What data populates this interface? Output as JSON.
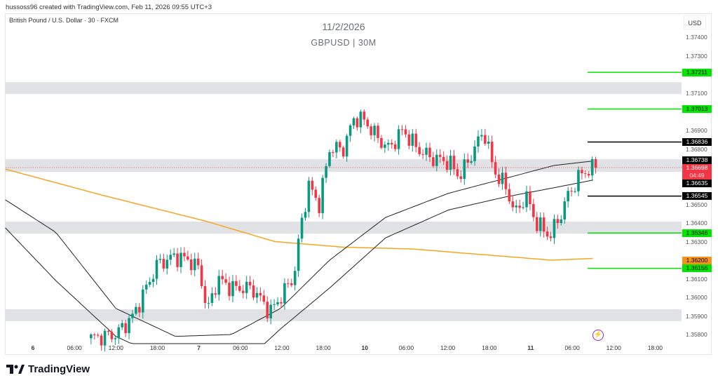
{
  "header": {
    "credit": "hussoss96 created with TradingView.com, Feb 11, 2026 09:55 UTC+3",
    "symbol": "British Pound / U.S. Dollar · 30 · FXCM",
    "date_title": "11/2/2026",
    "pair_title": "GBPUSD | 30M",
    "currency": "USD"
  },
  "footer": {
    "brand": "TradingView"
  },
  "colors": {
    "up": "#089981",
    "down": "#f23645",
    "ma": "#f5a623",
    "band": "#222222",
    "green_level": "#00e600",
    "black_level": "#000000",
    "zone": "#e0e2e6",
    "price_tag": "#f23645",
    "ma_tag": "#f7931a"
  },
  "chart_data": {
    "type": "candlestick",
    "x_unit": "trading hours since Feb 6 00:00",
    "ylim": [
      1.3575,
      1.3745
    ],
    "price_ticks": [
      "1.37400",
      "1.37300",
      "1.37100",
      "1.36900",
      "1.36800",
      "1.36500",
      "1.36400",
      "1.36300",
      "1.36100",
      "1.36000",
      "1.35900",
      "1.35800"
    ],
    "time_ticks": [
      {
        "h": 0,
        "label": "6",
        "day": true
      },
      {
        "h": 6,
        "label": "06:00"
      },
      {
        "h": 12,
        "label": "12:00"
      },
      {
        "h": 18,
        "label": "18:00"
      },
      {
        "h": 24,
        "label": "7",
        "day": true
      },
      {
        "h": 30,
        "label": "06:00"
      },
      {
        "h": 36,
        "label": "12:00"
      },
      {
        "h": 42,
        "label": "18:00"
      },
      {
        "h": 48,
        "label": "10",
        "day": true
      },
      {
        "h": 54,
        "label": "06:00"
      },
      {
        "h": 60,
        "label": "12:00"
      },
      {
        "h": 66,
        "label": "18:00"
      },
      {
        "h": 72,
        "label": "11",
        "day": true
      },
      {
        "h": 78,
        "label": "06:00"
      },
      {
        "h": 84,
        "label": "12:00"
      },
      {
        "h": 90,
        "label": "18:00"
      }
    ],
    "price_path": [
      [
        8.4,
        1.3578
      ],
      [
        12,
        1.358
      ],
      [
        14.5,
        1.359
      ],
      [
        17,
        1.361
      ],
      [
        18,
        1.3618
      ],
      [
        20.6,
        1.3622
      ],
      [
        22.6,
        1.362
      ],
      [
        24.1,
        1.3615
      ],
      [
        25.2,
        1.3592
      ],
      [
        26.7,
        1.361
      ],
      [
        28.7,
        1.3605
      ],
      [
        31.7,
        1.3605
      ],
      [
        34.3,
        1.3592
      ],
      [
        35.8,
        1.36
      ],
      [
        37.8,
        1.3612
      ],
      [
        38.8,
        1.364
      ],
      [
        39.9,
        1.366
      ],
      [
        41.4,
        1.365
      ],
      [
        42.9,
        1.368
      ],
      [
        44.9,
        1.368
      ],
      [
        46.5,
        1.3697
      ],
      [
        48,
        1.3695
      ],
      [
        50,
        1.3685
      ],
      [
        51.5,
        1.368
      ],
      [
        53.5,
        1.369
      ],
      [
        55.6,
        1.368
      ],
      [
        57.6,
        1.3675
      ],
      [
        60.1,
        1.3673
      ],
      [
        61.7,
        1.3665
      ],
      [
        63.2,
        1.3675
      ],
      [
        65.2,
        1.369
      ],
      [
        66.7,
        1.3668
      ],
      [
        68.3,
        1.366
      ],
      [
        69.8,
        1.3645
      ],
      [
        71.3,
        1.3655
      ],
      [
        72.8,
        1.364
      ],
      [
        74.8,
        1.3633
      ],
      [
        76.4,
        1.3645
      ],
      [
        77.4,
        1.3655
      ],
      [
        79.4,
        1.3667
      ],
      [
        81.4,
        1.36698
      ]
    ],
    "ma_line": [
      [
        -4,
        1.3669
      ],
      [
        10,
        1.3655
      ],
      [
        25,
        1.3641
      ],
      [
        35,
        1.363
      ],
      [
        45,
        1.3627
      ],
      [
        55,
        1.3626
      ],
      [
        65,
        1.3623
      ],
      [
        75,
        1.362
      ],
      [
        81.4,
        1.3621
      ]
    ],
    "upper_band": [
      [
        -4,
        1.36525
      ],
      [
        3.3,
        1.3635
      ],
      [
        12,
        1.3594
      ],
      [
        20.6,
        1.3579
      ],
      [
        28.7,
        1.358
      ],
      [
        35.8,
        1.3594
      ],
      [
        42.9,
        1.362
      ],
      [
        51,
        1.3643
      ],
      [
        60.1,
        1.3656
      ],
      [
        68.3,
        1.3664
      ],
      [
        75.4,
        1.3671
      ],
      [
        81.4,
        1.36735
      ]
    ],
    "lower_band": [
      [
        -4,
        1.36374
      ],
      [
        3.3,
        1.3609
      ],
      [
        12,
        1.3579
      ],
      [
        20,
        1.3565
      ],
      [
        30,
        1.3563
      ],
      [
        35.8,
        1.3583
      ],
      [
        42.9,
        1.3605
      ],
      [
        51,
        1.3632
      ],
      [
        60.1,
        1.3647
      ],
      [
        68.3,
        1.3654
      ],
      [
        75.4,
        1.3659
      ],
      [
        81.4,
        1.36634
      ]
    ],
    "zones": [
      [
        1.37094,
        1.37158
      ],
      [
        1.36675,
        1.36743
      ],
      [
        1.36343,
        1.36408
      ],
      [
        1.35872,
        1.35936
      ]
    ],
    "levels": [
      {
        "price": 1.37211,
        "label": "1.37211",
        "kind": "green"
      },
      {
        "price": 1.37013,
        "label": "1.37013",
        "kind": "green"
      },
      {
        "price": 1.36836,
        "label": "1.36836",
        "kind": "black"
      },
      {
        "price": 1.36545,
        "label": "1.36545",
        "kind": "black"
      },
      {
        "price": 1.36346,
        "label": "1.36346",
        "kind": "green"
      },
      {
        "price": 1.36156,
        "label": "1.36156",
        "kind": "green"
      }
    ],
    "tags": [
      {
        "price": 1.36738,
        "label": "1.36738",
        "kind": "black"
      },
      {
        "price": 1.36635,
        "label": "1.36635",
        "kind": "black"
      },
      {
        "price": 1.362,
        "label": "1.36200",
        "kind": "ma"
      }
    ],
    "current": {
      "price": 1.36698,
      "label": "1.36698",
      "countdown": "04:49"
    }
  }
}
